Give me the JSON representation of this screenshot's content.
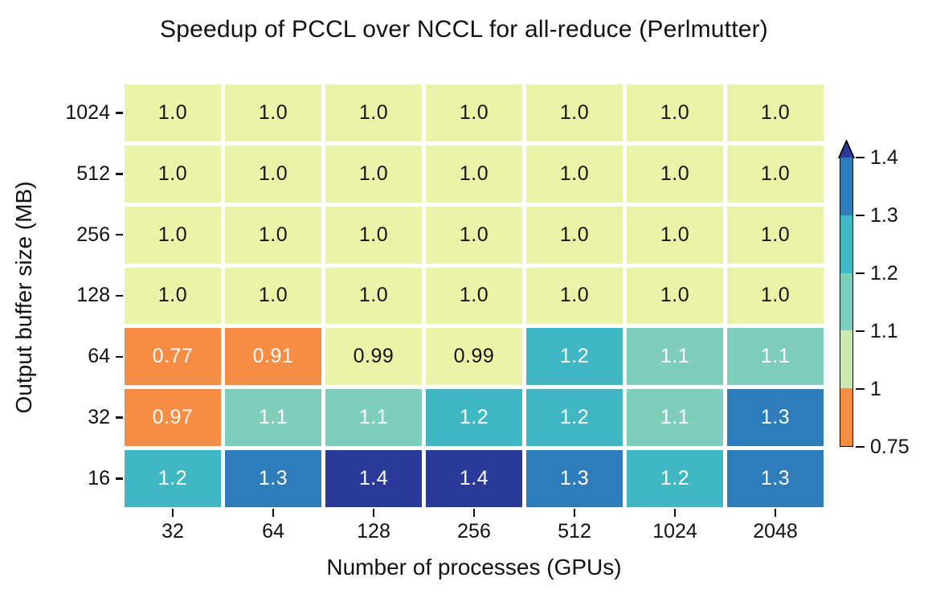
{
  "chart_data": {
    "type": "heatmap",
    "title": "Speedup of PCCL over NCCL for all-reduce (Perlmutter)",
    "xlabel": "Number of processes (GPUs)",
    "ylabel": "Output buffer size (MB)",
    "x_labels": [
      "32",
      "64",
      "128",
      "256",
      "512",
      "1024",
      "2048"
    ],
    "y_labels": [
      "1024",
      "512",
      "256",
      "128",
      "64",
      "32",
      "16"
    ],
    "values": [
      [
        1.0,
        1.0,
        1.0,
        1.0,
        1.0,
        1.0,
        1.0
      ],
      [
        1.0,
        1.0,
        1.0,
        1.0,
        1.0,
        1.0,
        1.0
      ],
      [
        1.0,
        1.0,
        1.0,
        1.0,
        1.0,
        1.0,
        1.0
      ],
      [
        1.0,
        1.0,
        1.0,
        1.0,
        1.0,
        1.0,
        1.0
      ],
      [
        0.77,
        0.91,
        0.99,
        0.99,
        1.2,
        1.1,
        1.1
      ],
      [
        0.97,
        1.1,
        1.1,
        1.2,
        1.2,
        1.1,
        1.3
      ],
      [
        1.2,
        1.3,
        1.4,
        1.4,
        1.3,
        1.2,
        1.3
      ]
    ],
    "cell_text": [
      [
        "1.0",
        "1.0",
        "1.0",
        "1.0",
        "1.0",
        "1.0",
        "1.0"
      ],
      [
        "1.0",
        "1.0",
        "1.0",
        "1.0",
        "1.0",
        "1.0",
        "1.0"
      ],
      [
        "1.0",
        "1.0",
        "1.0",
        "1.0",
        "1.0",
        "1.0",
        "1.0"
      ],
      [
        "1.0",
        "1.0",
        "1.0",
        "1.0",
        "1.0",
        "1.0",
        "1.0"
      ],
      [
        "0.77",
        "0.91",
        "0.99",
        "0.99",
        "1.2",
        "1.1",
        "1.1"
      ],
      [
        "0.97",
        "1.1",
        "1.1",
        "1.2",
        "1.2",
        "1.1",
        "1.3"
      ],
      [
        "1.2",
        "1.3",
        "1.4",
        "1.4",
        "1.3",
        "1.2",
        "1.3"
      ]
    ],
    "cell_colors": [
      [
        "pale",
        "pale",
        "pale",
        "pale",
        "pale",
        "pale",
        "pale"
      ],
      [
        "pale",
        "pale",
        "pale",
        "pale",
        "pale",
        "pale",
        "pale"
      ],
      [
        "pale",
        "pale",
        "pale",
        "pale",
        "pale",
        "pale",
        "pale"
      ],
      [
        "pale",
        "pale",
        "pale",
        "pale",
        "pale",
        "pale",
        "pale"
      ],
      [
        "orange",
        "orange",
        "pale",
        "pale",
        "cyan",
        "teal",
        "teal"
      ],
      [
        "orange",
        "teal",
        "teal",
        "cyan",
        "cyan",
        "teal",
        "blue"
      ],
      [
        "cyan",
        "blue",
        "navy",
        "navy",
        "blue",
        "cyan",
        "blue"
      ]
    ],
    "palette": {
      "pale": "#eaf3a8",
      "lightgreen": "#c9e9b5",
      "teal": "#7fcdbb",
      "cyan": "#42b7c4",
      "blue": "#2f7cba",
      "navy": "#2b3a98",
      "orange": "#f78c45"
    },
    "text_colors": {
      "pale": "#141414",
      "default": "#ffffff"
    },
    "colorbar": {
      "range": [
        0.75,
        1.4
      ],
      "tick_labels": [
        "1.4",
        "1.3",
        "1.2",
        "1.1",
        "1",
        "0.75"
      ],
      "segments_top_to_bottom": [
        "blue",
        "cyan",
        "teal",
        "lightgreen",
        "orange"
      ],
      "over_color": "navy"
    },
    "layout": {
      "grid": false,
      "legend": "colorbar-right"
    }
  }
}
